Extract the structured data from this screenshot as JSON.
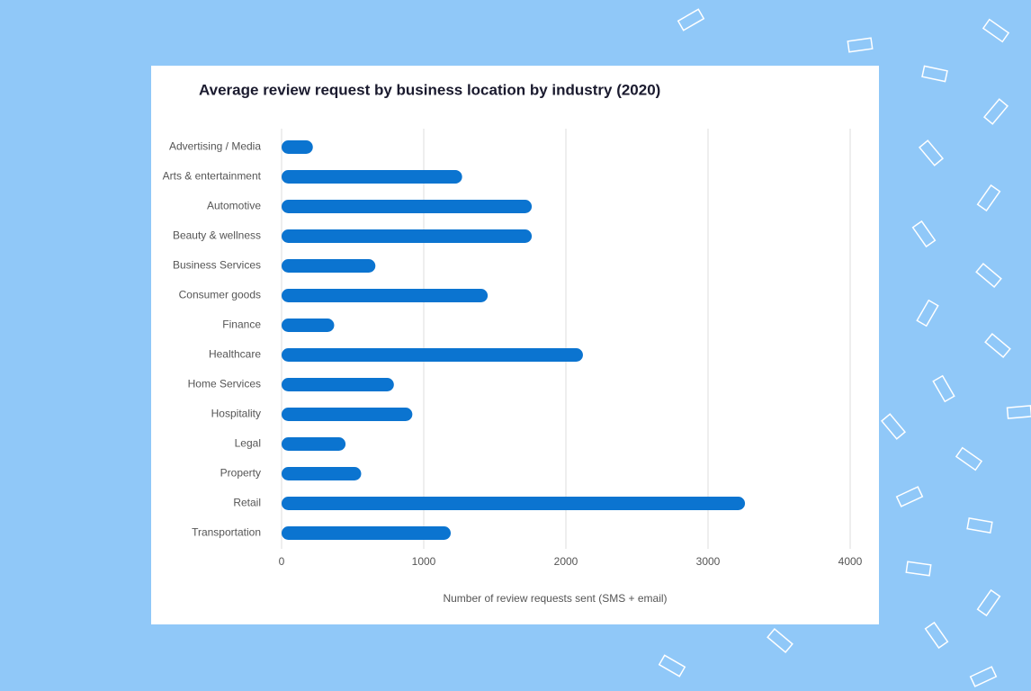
{
  "chart_data": {
    "type": "bar",
    "orientation": "horizontal",
    "title": "Average review request by business location by industry (2020)",
    "x_label": "Number of review requests sent (SMS + email)",
    "categories": [
      "Advertising / Media",
      "Arts & entertainment",
      "Automotive",
      "Beauty & wellness",
      "Business Services",
      "Consumer goods",
      "Finance",
      "Healthcare",
      "Home Services",
      "Hospitality",
      "Legal",
      "Property",
      "Retail",
      "Transportation"
    ],
    "values": [
      220,
      1270,
      1760,
      1760,
      660,
      1450,
      370,
      2120,
      790,
      920,
      450,
      560,
      3260,
      1190
    ],
    "color": "#0b74d0",
    "xlim": [
      0,
      4000
    ],
    "xticks": [
      0,
      1000,
      2000,
      3000,
      4000
    ],
    "grid": true
  }
}
